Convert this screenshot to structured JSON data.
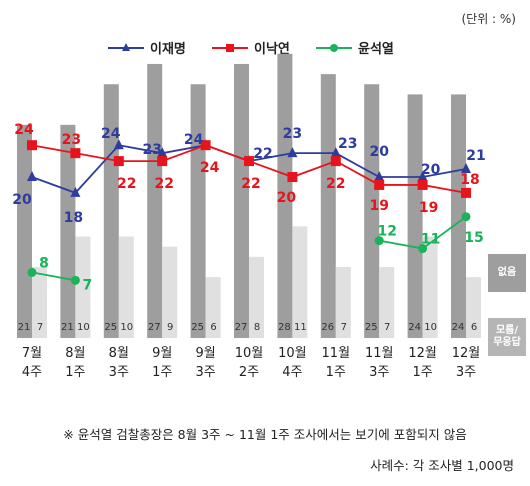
{
  "unit_label": "(단위 : %)",
  "side_labels": {
    "none": "없음",
    "unknown": "모름/\n무응답"
  },
  "footnote": "※ 윤석열 검찰총장은 8월 3주 ~ 11월 1주 조사에서는 보기에 포함되지 않음",
  "sample_note": "사례수: 각 조사별 1,000명",
  "colors": {
    "lee_jm": "#2e3c9e",
    "lee_ny": "#e8141b",
    "yoon": "#19b35a",
    "bar_none": "#9e9e9e",
    "bar_unknown": "#e0e0e0"
  },
  "chart_data": {
    "type": "bar+line",
    "categories": [
      "7월\n4주",
      "8월\n1주",
      "8월\n3주",
      "9월\n1주",
      "9월\n3주",
      "10월\n2주",
      "10월\n4주",
      "11월\n1주",
      "11월\n3주",
      "12월\n1주",
      "12월\n3주"
    ],
    "ylim": [
      0,
      30
    ],
    "bars": [
      {
        "name": "없음",
        "values": [
          21,
          21,
          25,
          27,
          25,
          27,
          28,
          26,
          25,
          24,
          24
        ]
      },
      {
        "name": "모름/무응답",
        "values": [
          7,
          10,
          10,
          9,
          6,
          8,
          11,
          7,
          7,
          10,
          6
        ]
      }
    ],
    "series": [
      {
        "name": "이재명",
        "values": [
          20,
          18,
          24,
          23,
          24,
          22,
          23,
          23,
          20,
          20,
          21
        ]
      },
      {
        "name": "이낙연",
        "values": [
          24,
          23,
          22,
          22,
          24,
          22,
          20,
          22,
          19,
          19,
          18
        ]
      },
      {
        "name": "윤석열",
        "values": [
          8,
          7,
          null,
          null,
          null,
          null,
          null,
          null,
          12,
          11,
          15
        ]
      }
    ]
  }
}
